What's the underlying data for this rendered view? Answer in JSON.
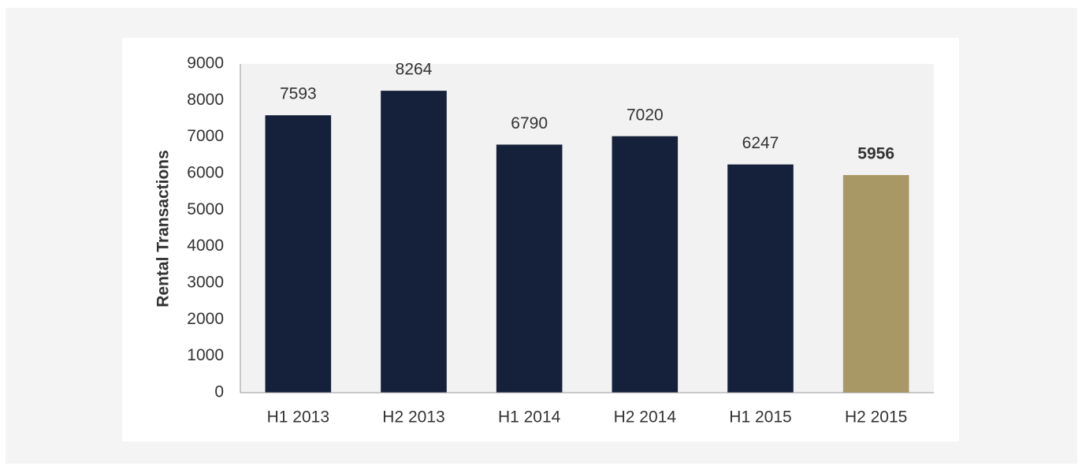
{
  "chart_data": {
    "type": "bar",
    "y_label": "Rental Transactions",
    "categories": [
      "H1 2013",
      "H2 2013",
      "H1 2014",
      "H2 2014",
      "H1 2015",
      "H2 2015"
    ],
    "values": [
      7593,
      8264,
      6790,
      7020,
      6247,
      5956
    ],
    "colors": [
      "#15203a",
      "#15203a",
      "#15203a",
      "#15203a",
      "#15203a",
      "#a89865"
    ],
    "label_weights": [
      "normal",
      "normal",
      "normal",
      "normal",
      "normal",
      "bold"
    ],
    "ylim": [
      0,
      9000
    ],
    "yticks": [
      0,
      1000,
      2000,
      3000,
      4000,
      5000,
      6000,
      7000,
      8000,
      9000
    ],
    "grid": false
  }
}
